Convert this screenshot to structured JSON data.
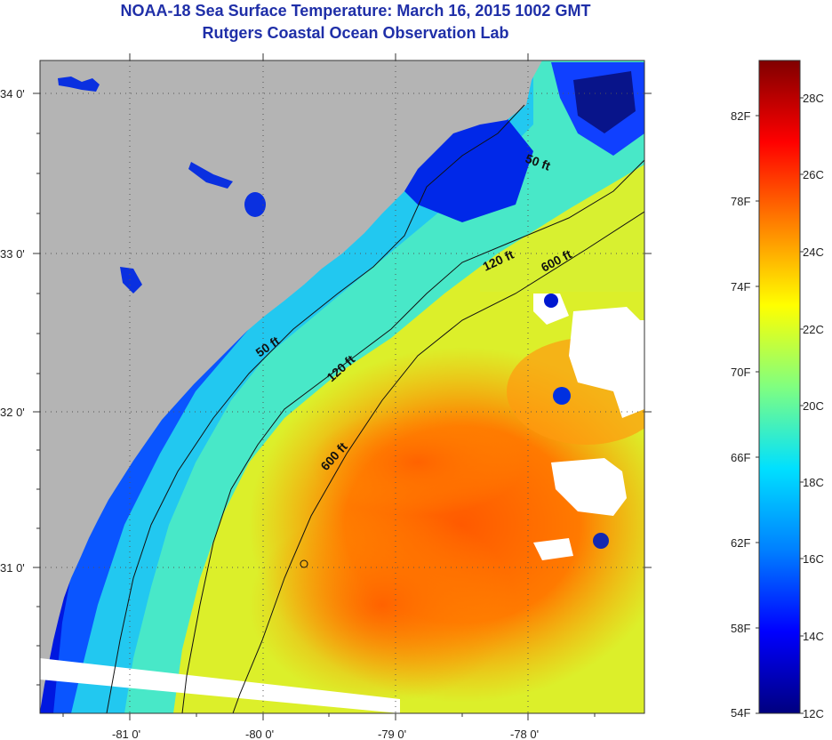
{
  "title": {
    "line1": "NOAA-18 Sea Surface Temperature:  March 16, 2015 1002 GMT",
    "line2": "Rutgers Coastal Ocean Observation Lab"
  },
  "map": {
    "lat_labels": [
      "34 0'",
      "33 0'",
      "32 0'",
      "31 0'"
    ],
    "lon_labels": [
      "-81 0'",
      "-80 0'",
      "-79 0'",
      "-78 0'"
    ],
    "contours": [
      {
        "label": "50 ft"
      },
      {
        "label": "50 ft"
      },
      {
        "label": "120 ft"
      },
      {
        "label": "120 ft"
      },
      {
        "label": "600 ft"
      },
      {
        "label": "600 ft"
      }
    ]
  },
  "colorbar": {
    "fahrenheit": [
      "82F",
      "78F",
      "74F",
      "70F",
      "66F",
      "62F",
      "58F",
      "54F"
    ],
    "celsius": [
      "28C",
      "26C",
      "24C",
      "22C",
      "20C",
      "18C",
      "16C",
      "14C",
      "12C"
    ],
    "colors": {
      "c54": "#00007f",
      "c58": "#0000ff",
      "c62": "#0080ff",
      "c66": "#00e0ff",
      "c70": "#80ff80",
      "c74": "#ffff00",
      "c78": "#ff8000",
      "c82": "#ff0000",
      "c86": "#800000"
    }
  },
  "colors": {
    "title": "#1f2fa8",
    "land": "#b4b4b4",
    "cloud": "#ffffff"
  }
}
